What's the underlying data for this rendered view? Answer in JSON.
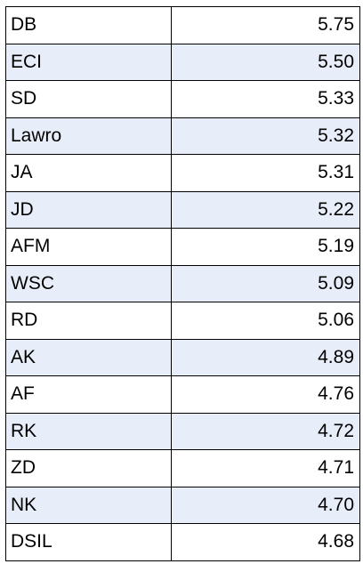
{
  "table": {
    "rows": [
      [
        "DB",
        "5.75"
      ],
      [
        "ECI",
        "5.50"
      ],
      [
        "SD",
        "5.33"
      ],
      [
        "Lawro",
        "5.32"
      ],
      [
        "JA",
        "5.31"
      ],
      [
        "JD",
        "5.22"
      ],
      [
        "AFM",
        "5.19"
      ],
      [
        "WSC",
        "5.09"
      ],
      [
        "RD",
        "5.06"
      ],
      [
        "AK",
        "4.89"
      ],
      [
        "AF",
        "4.76"
      ],
      [
        "RK",
        "4.72"
      ],
      [
        "ZD",
        "4.71"
      ],
      [
        "NK",
        "4.70"
      ],
      [
        "DSIL",
        "4.68"
      ]
    ]
  }
}
